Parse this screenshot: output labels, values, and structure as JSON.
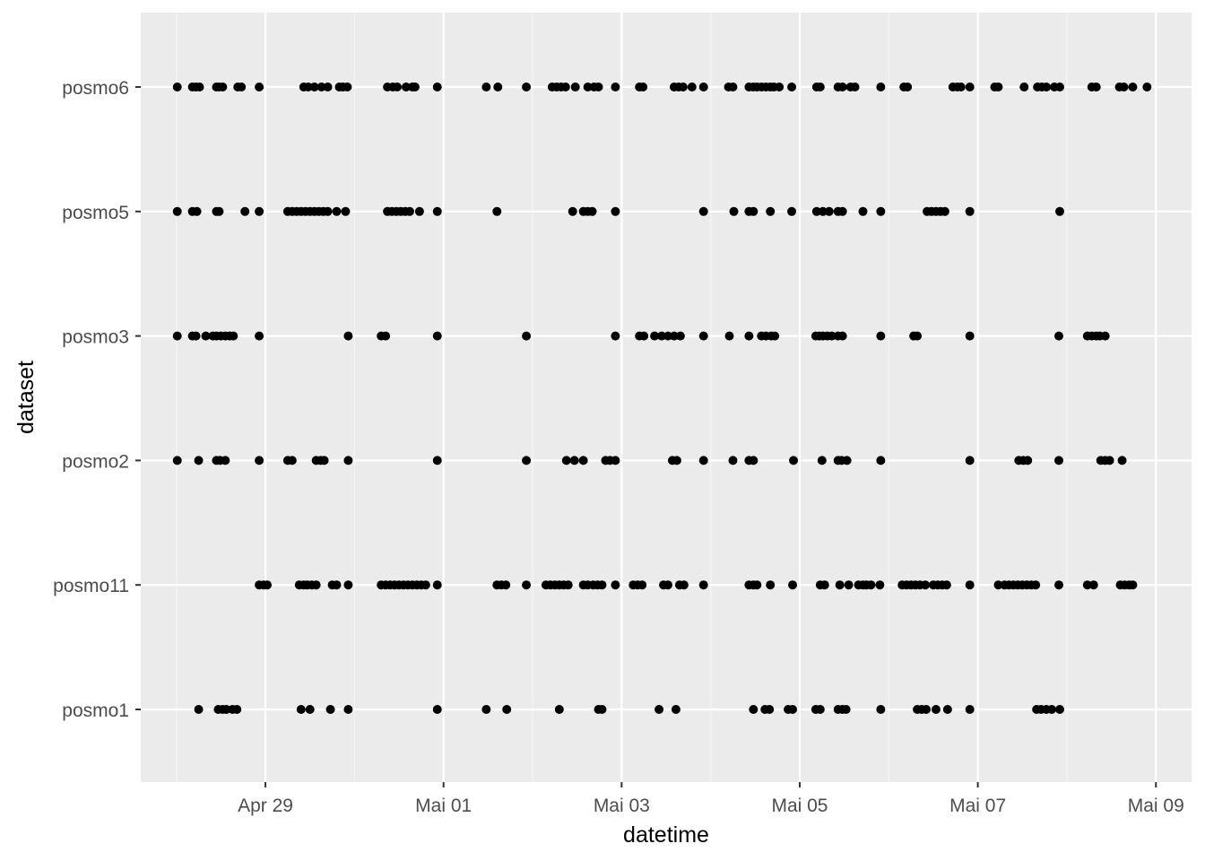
{
  "colors": {
    "panel_background": "#ebebeb",
    "grid_major": "#ffffff",
    "grid_minor": "#f5f5f5",
    "point": "#000000",
    "tick_text": "#4d4d4d",
    "tick_mark": "#333333"
  },
  "chart_data": {
    "type": "scatter",
    "title": "",
    "xlabel": "datetime",
    "ylabel": "dataset",
    "xlim": [
      27.6,
      39.4
    ],
    "x_unit": "day index (Apr 29 = 29, Mai 01 = 31, ... Mai 09 = 39)",
    "x_ticks": [
      {
        "value": 29,
        "label": "Apr 29"
      },
      {
        "value": 31,
        "label": "Mai 01"
      },
      {
        "value": 33,
        "label": "Mai 03"
      },
      {
        "value": 35,
        "label": "Mai 05"
      },
      {
        "value": 37,
        "label": "Mai 07"
      },
      {
        "value": 39,
        "label": "Mai 09"
      }
    ],
    "categories": [
      "posmo1",
      "posmo11",
      "posmo2",
      "posmo3",
      "posmo5",
      "posmo6"
    ],
    "grid": true,
    "series": [
      {
        "name": "posmo6",
        "x": [
          28.01,
          28.18,
          28.22,
          28.26,
          28.45,
          28.48,
          28.52,
          28.69,
          28.73,
          28.93,
          29.43,
          29.48,
          29.55,
          29.63,
          29.7,
          29.83,
          29.87,
          29.92,
          30.37,
          30.43,
          30.48,
          30.58,
          30.65,
          30.68,
          30.93,
          31.48,
          31.61,
          31.93,
          32.22,
          32.27,
          32.32,
          32.37,
          32.48,
          32.62,
          32.69,
          32.74,
          32.93,
          33.2,
          33.24,
          33.59,
          33.64,
          33.69,
          33.79,
          33.92,
          34.2,
          34.25,
          34.43,
          34.48,
          34.52,
          34.57,
          34.62,
          34.67,
          34.71,
          34.77,
          34.91,
          35.19,
          35.23,
          35.43,
          35.48,
          35.57,
          35.62,
          35.91,
          36.17,
          36.21,
          36.72,
          36.77,
          36.81,
          36.91,
          37.19,
          37.23,
          37.52,
          37.67,
          37.72,
          37.77,
          37.86,
          37.92,
          38.28,
          38.33,
          38.59,
          38.64,
          38.74,
          38.9
        ]
      },
      {
        "name": "posmo5",
        "x": [
          28.01,
          28.18,
          28.23,
          28.45,
          28.48,
          28.77,
          28.93,
          29.25,
          29.3,
          29.35,
          29.4,
          29.45,
          29.5,
          29.55,
          29.6,
          29.65,
          29.7,
          29.8,
          29.9,
          30.37,
          30.42,
          30.47,
          30.52,
          30.57,
          30.62,
          30.73,
          30.93,
          31.6,
          32.45,
          32.57,
          32.62,
          32.67,
          32.93,
          33.92,
          34.26,
          34.43,
          34.48,
          34.67,
          34.91,
          35.19,
          35.26,
          35.33,
          35.43,
          35.48,
          35.71,
          35.91,
          36.43,
          36.48,
          36.53,
          36.58,
          36.63,
          36.91,
          37.92
        ]
      },
      {
        "name": "posmo3",
        "x": [
          28.01,
          28.18,
          28.22,
          28.33,
          28.41,
          28.45,
          28.5,
          28.55,
          28.6,
          28.64,
          28.93,
          29.93,
          30.3,
          30.35,
          30.93,
          31.93,
          32.93,
          33.2,
          33.25,
          33.37,
          33.45,
          33.52,
          33.59,
          33.66,
          33.92,
          34.21,
          34.43,
          34.57,
          34.62,
          34.68,
          34.72,
          35.18,
          35.22,
          35.26,
          35.31,
          35.36,
          35.43,
          35.48,
          35.91,
          36.28,
          36.32,
          36.91,
          37.91,
          38.23,
          38.28,
          38.33,
          38.37,
          38.43
        ]
      },
      {
        "name": "posmo2",
        "x": [
          28.01,
          28.25,
          28.45,
          28.49,
          28.55,
          28.93,
          29.25,
          29.3,
          29.57,
          29.62,
          29.66,
          29.93,
          30.93,
          31.93,
          32.38,
          32.47,
          32.57,
          32.82,
          32.87,
          32.93,
          33.57,
          33.62,
          33.92,
          34.25,
          34.43,
          34.48,
          34.93,
          35.25,
          35.43,
          35.47,
          35.53,
          35.91,
          36.91,
          37.46,
          37.51,
          37.56,
          37.91,
          38.38,
          38.43,
          38.48,
          38.62
        ]
      },
      {
        "name": "posmo11",
        "x": [
          28.93,
          28.98,
          29.02,
          29.38,
          29.43,
          29.47,
          29.52,
          29.57,
          29.75,
          29.8,
          29.93,
          30.3,
          30.35,
          30.4,
          30.45,
          30.5,
          30.55,
          30.6,
          30.65,
          30.7,
          30.75,
          30.8,
          30.93,
          31.6,
          31.65,
          31.7,
          31.93,
          32.15,
          32.2,
          32.25,
          32.3,
          32.35,
          32.4,
          32.57,
          32.62,
          32.68,
          32.73,
          32.78,
          32.93,
          33.13,
          33.18,
          33.23,
          33.47,
          33.52,
          33.65,
          33.7,
          33.92,
          34.43,
          34.48,
          34.52,
          34.67,
          34.92,
          35.23,
          35.28,
          35.45,
          35.55,
          35.66,
          35.71,
          35.75,
          35.8,
          35.9,
          36.15,
          36.2,
          36.25,
          36.3,
          36.35,
          36.41,
          36.5,
          36.55,
          36.6,
          36.65,
          36.91,
          37.23,
          37.3,
          37.35,
          37.4,
          37.45,
          37.5,
          37.55,
          37.6,
          37.65,
          37.91,
          38.23,
          38.3,
          38.6,
          38.65,
          38.7,
          38.74
        ]
      },
      {
        "name": "posmo1",
        "x": [
          28.25,
          28.47,
          28.52,
          28.56,
          28.63,
          28.68,
          29.4,
          29.5,
          29.73,
          29.93,
          30.93,
          31.48,
          31.71,
          32.3,
          32.74,
          32.78,
          33.42,
          33.61,
          34.48,
          34.61,
          34.66,
          34.87,
          34.92,
          35.18,
          35.23,
          35.43,
          35.48,
          35.52,
          35.91,
          36.32,
          36.37,
          36.42,
          36.53,
          36.66,
          36.91,
          37.66,
          37.71,
          37.77,
          37.83,
          37.92
        ]
      }
    ]
  }
}
